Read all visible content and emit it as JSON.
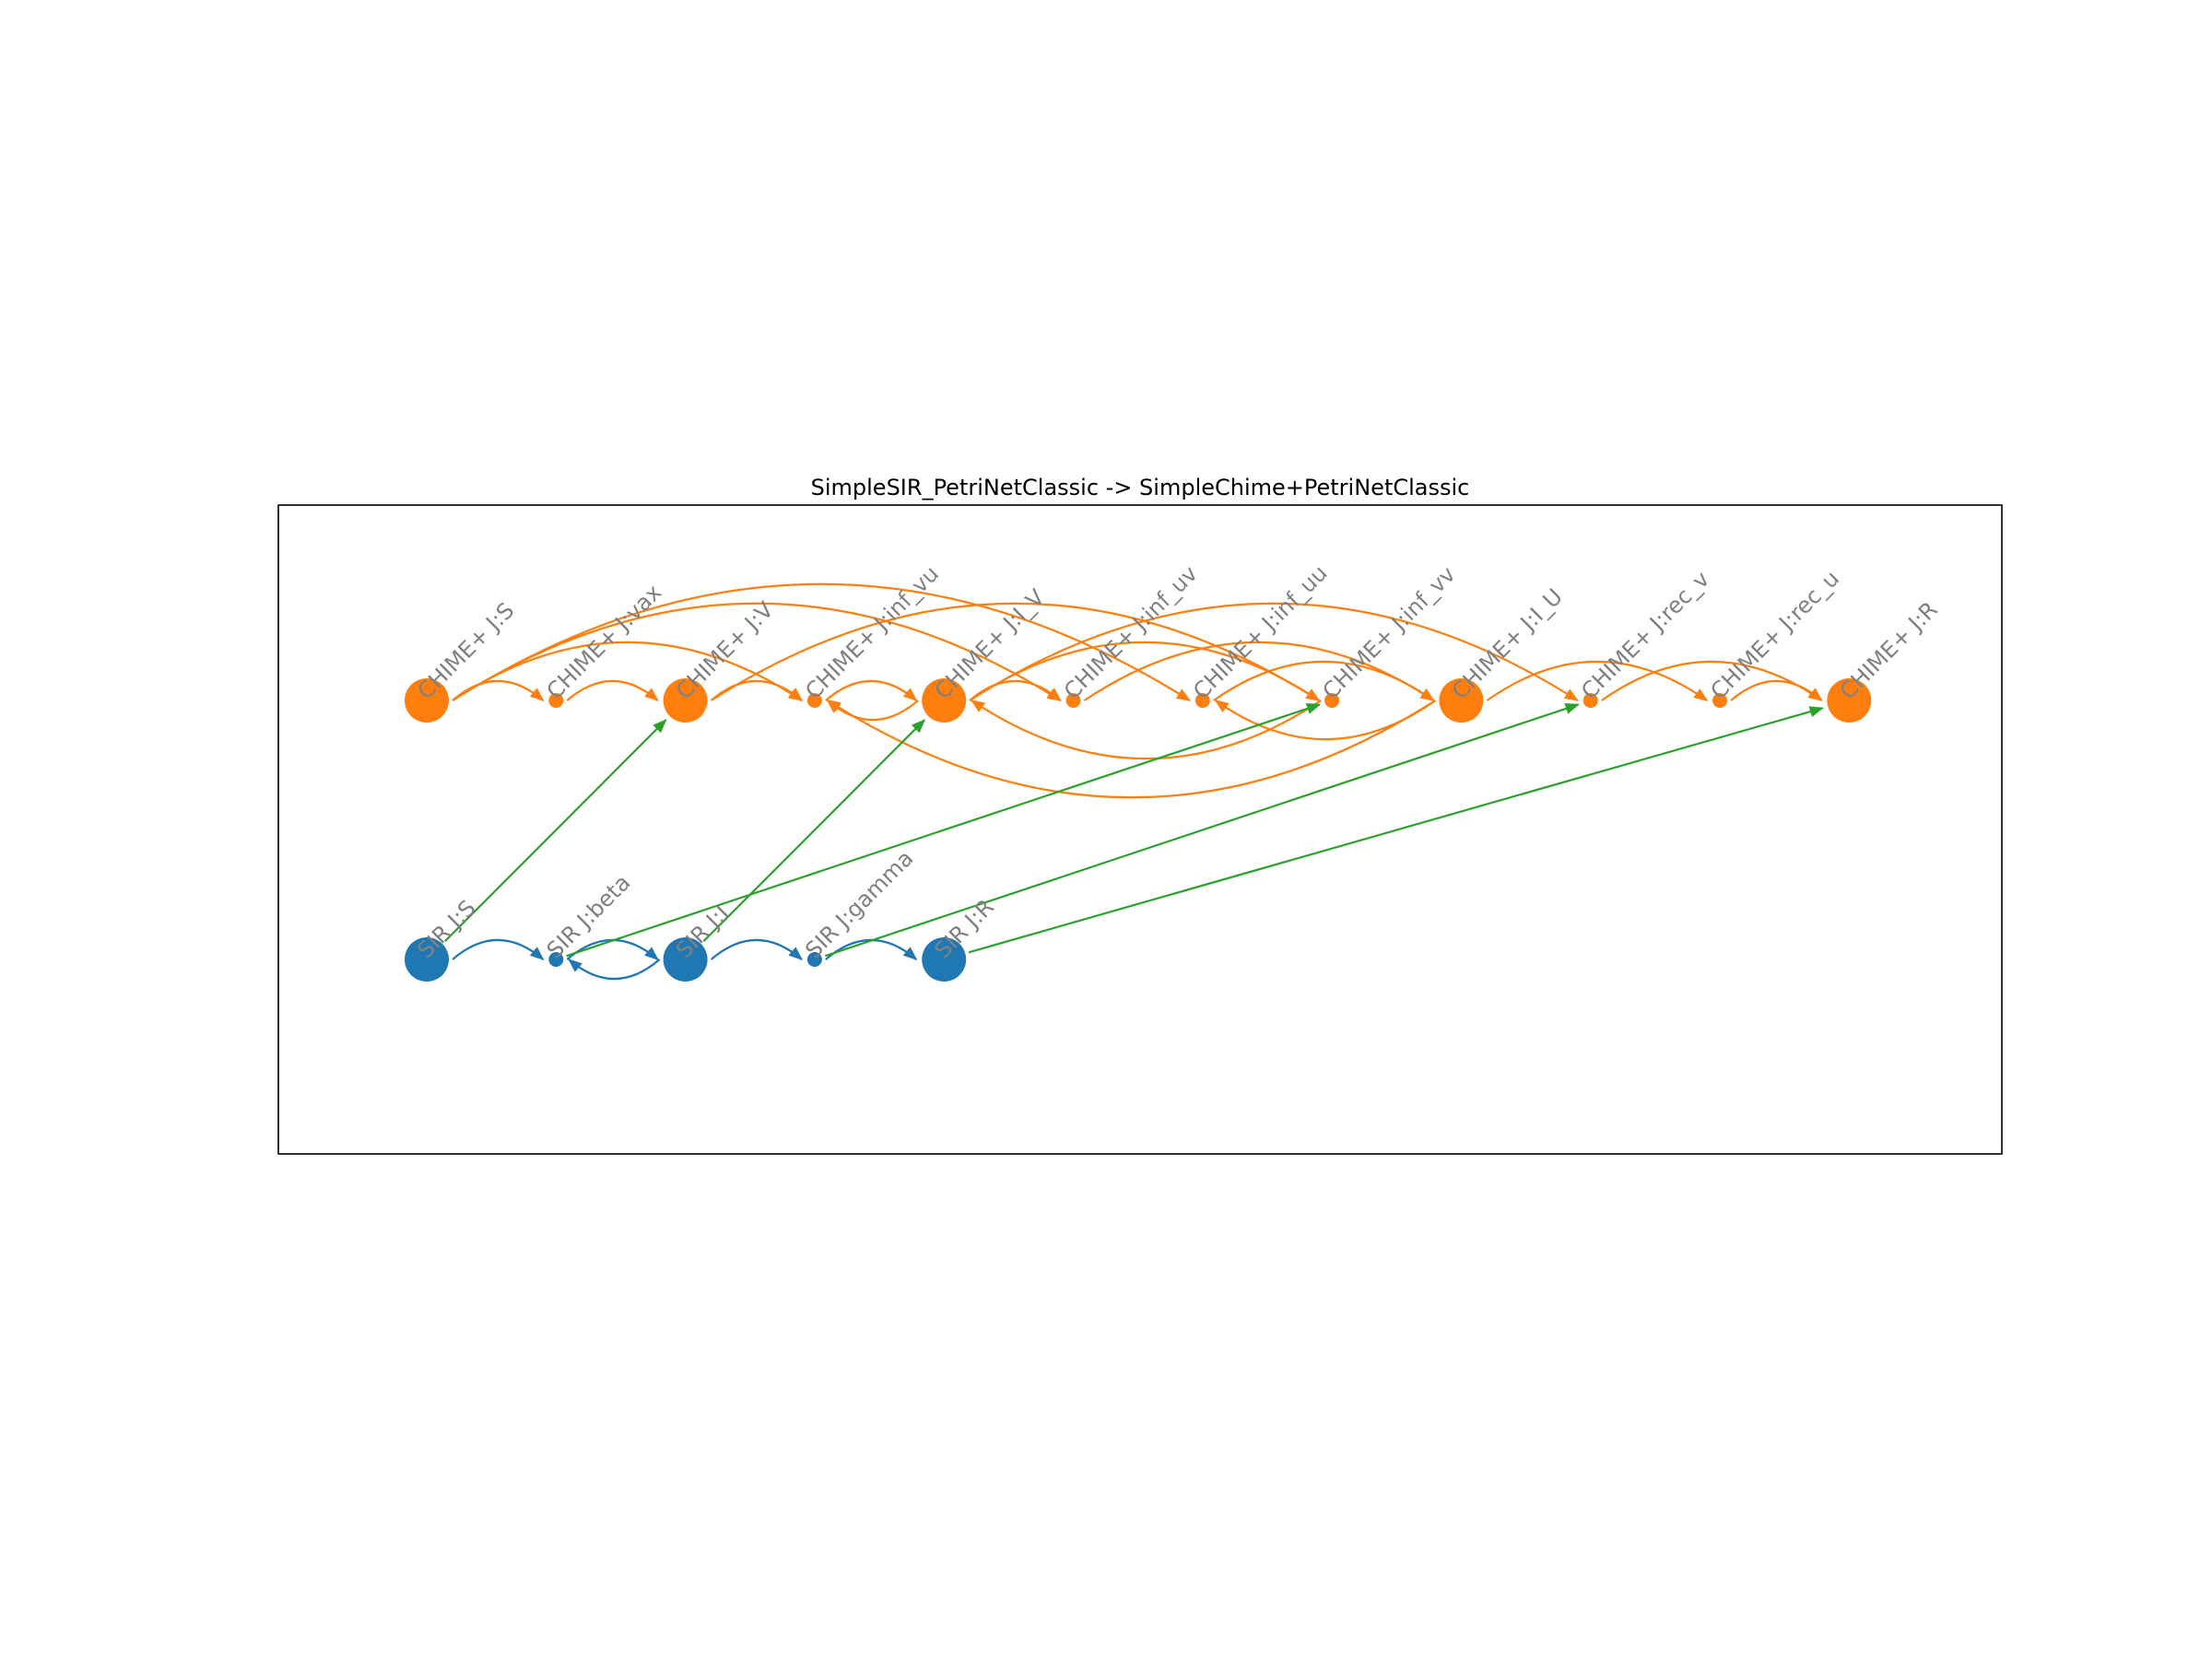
{
  "title": "SimpleSIR_PetriNetClassic -> SimpleChime+PetriNetClassic",
  "colors": {
    "chime": "#ff7f0e",
    "sir": "#1f77b4",
    "mapping": "#2ca02c",
    "label": "#808080",
    "frame": "#000000"
  },
  "graph": {
    "chime_nodes": [
      {
        "id": "c_S",
        "label": "CHIME+ J:S",
        "kind": "species"
      },
      {
        "id": "c_vax",
        "label": "CHIME+ J:vax",
        "kind": "transition"
      },
      {
        "id": "c_V",
        "label": "CHIME+ J:V",
        "kind": "species"
      },
      {
        "id": "c_inf_vu",
        "label": "CHIME+ J:inf_vu",
        "kind": "transition"
      },
      {
        "id": "c_I_V",
        "label": "CHIME+ J:I_V",
        "kind": "species"
      },
      {
        "id": "c_inf_uv",
        "label": "CHIME+ J:inf_uv",
        "kind": "transition"
      },
      {
        "id": "c_inf_uu",
        "label": "CHIME+ J:inf_uu",
        "kind": "transition"
      },
      {
        "id": "c_inf_vv",
        "label": "CHIME+ J:inf_vv",
        "kind": "transition"
      },
      {
        "id": "c_I_U",
        "label": "CHIME+ J:I_U",
        "kind": "species"
      },
      {
        "id": "c_rec_v",
        "label": "CHIME+ J:rec_v",
        "kind": "transition"
      },
      {
        "id": "c_rec_u",
        "label": "CHIME+ J:rec_u",
        "kind": "transition"
      },
      {
        "id": "c_R",
        "label": "CHIME+ J:R",
        "kind": "species"
      }
    ],
    "sir_nodes": [
      {
        "id": "s_S",
        "label": "SIR J:S",
        "kind": "species"
      },
      {
        "id": "s_beta",
        "label": "SIR J:beta",
        "kind": "transition"
      },
      {
        "id": "s_I",
        "label": "SIR J:I",
        "kind": "species"
      },
      {
        "id": "s_gamma",
        "label": "SIR J:gamma",
        "kind": "transition"
      },
      {
        "id": "s_R",
        "label": "SIR J:R",
        "kind": "species"
      }
    ],
    "chime_edges": [
      [
        "c_S",
        "c_vax"
      ],
      [
        "c_vax",
        "c_V"
      ],
      [
        "c_V",
        "c_inf_vu"
      ],
      [
        "c_inf_vu",
        "c_I_V"
      ],
      [
        "c_I_V",
        "c_inf_vu"
      ],
      [
        "c_S",
        "c_inf_vu"
      ],
      [
        "c_S",
        "c_inf_uu"
      ],
      [
        "c_S",
        "c_inf_uv"
      ],
      [
        "c_V",
        "c_inf_vv"
      ],
      [
        "c_inf_vv",
        "c_I_V"
      ],
      [
        "c_I_V",
        "c_inf_vv"
      ],
      [
        "c_I_V",
        "c_inf_uv"
      ],
      [
        "c_inf_uv",
        "c_I_U"
      ],
      [
        "c_I_U",
        "c_inf_uu"
      ],
      [
        "c_inf_uu",
        "c_I_U"
      ],
      [
        "c_I_U",
        "c_inf_vu"
      ],
      [
        "c_I_V",
        "c_rec_v"
      ],
      [
        "c_rec_v",
        "c_R"
      ],
      [
        "c_I_U",
        "c_rec_u"
      ],
      [
        "c_rec_u",
        "c_R"
      ]
    ],
    "sir_edges": [
      [
        "s_S",
        "s_beta"
      ],
      [
        "s_beta",
        "s_I"
      ],
      [
        "s_I",
        "s_beta"
      ],
      [
        "s_I",
        "s_gamma"
      ],
      [
        "s_gamma",
        "s_R"
      ]
    ],
    "mapping_edges": [
      [
        "s_S",
        "c_V"
      ],
      [
        "s_I",
        "c_I_V"
      ],
      [
        "s_beta",
        "c_inf_vv"
      ],
      [
        "s_gamma",
        "c_rec_v"
      ],
      [
        "s_R",
        "c_R"
      ]
    ]
  }
}
